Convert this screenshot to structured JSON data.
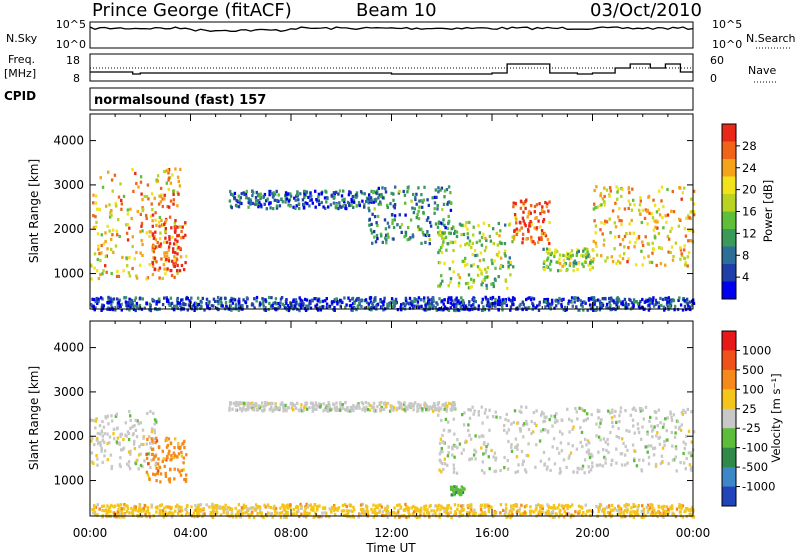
{
  "header": {
    "station": "Prince George (fitACF)",
    "beam": "Beam 10",
    "date": "03/Oct/2010"
  },
  "status_panels": {
    "nsky_label": "N.Sky",
    "nsky_ticks": [
      "10^5",
      "10^0"
    ],
    "nsearch_label": "N.Search",
    "freq_label": "Freq.",
    "freq_unit": "[MHz]",
    "freq_ticks": [
      "18",
      "8"
    ],
    "nave_label": "Nave",
    "nave_ticks": [
      "60",
      "0"
    ],
    "cpid_label": "CPID",
    "cpid_text": "normalsound (fast) 157"
  },
  "chart_data": [
    {
      "type": "heatmap",
      "name": "power",
      "ylabel": "Slant Range [km]",
      "yticks": [
        1000,
        2000,
        3000,
        4000
      ],
      "ylim": [
        200,
        4600
      ],
      "xlim_hours": [
        0,
        24
      ],
      "xtick_labels": [
        "00:00",
        "04:00",
        "08:00",
        "12:00",
        "16:00",
        "20:00",
        "00:00"
      ],
      "colorbar": {
        "label": "Power [dB]",
        "ticks": [
          "4",
          "8",
          "12",
          "16",
          "20",
          "24",
          "28"
        ],
        "colors": [
          "#0000ee",
          "#1f3fa8",
          "#2e6f9a",
          "#3a9a5a",
          "#5fbf3a",
          "#b8d420",
          "#f2e21a",
          "#f5a31a",
          "#f0641a",
          "#e82818"
        ]
      },
      "echo_regions": [
        {
          "t0": 0.0,
          "t1": 3.6,
          "r0": 900,
          "r1": 3400,
          "level": 0.7
        },
        {
          "t0": 2.4,
          "t1": 3.8,
          "r0": 1100,
          "r1": 2300,
          "level": 0.9
        },
        {
          "t0": 5.5,
          "t1": 11.5,
          "r0": 2500,
          "r1": 2900,
          "level": 0.2
        },
        {
          "t0": 11.0,
          "t1": 14.5,
          "r0": 1700,
          "r1": 3000,
          "level": 0.3
        },
        {
          "t0": 13.8,
          "t1": 16.8,
          "r0": 700,
          "r1": 2200,
          "level": 0.5
        },
        {
          "t0": 16.8,
          "t1": 18.3,
          "r0": 1700,
          "r1": 2700,
          "level": 0.9
        },
        {
          "t0": 18.0,
          "t1": 20.0,
          "r0": 1100,
          "r1": 1600,
          "level": 0.5
        },
        {
          "t0": 20.0,
          "t1": 24.0,
          "r0": 1200,
          "r1": 3000,
          "level": 0.7
        },
        {
          "t0": 0.0,
          "t1": 24.0,
          "r0": 200,
          "r1": 500,
          "level": 0.15
        }
      ]
    },
    {
      "type": "heatmap",
      "name": "velocity",
      "ylabel": "Slant Range [km]",
      "yticks": [
        1000,
        2000,
        3000,
        4000
      ],
      "ylim": [
        200,
        4600
      ],
      "xlim_hours": [
        0,
        24
      ],
      "xtick_labels": [
        "00:00",
        "04:00",
        "08:00",
        "12:00",
        "16:00",
        "20:00",
        "00:00"
      ],
      "xlabel": "Time UT",
      "colorbar": {
        "label": "Velocity [m s⁻¹]",
        "ticks": [
          "1000",
          "500",
          "100",
          "25",
          "-25",
          "-100",
          "-500",
          "-1000"
        ],
        "colors": [
          "#2244bb",
          "#3d86c8",
          "#2f8a4a",
          "#5cbd3a",
          "#c8c8c8",
          "#f5c51a",
          "#f5891a",
          "#f0501a",
          "#e81818"
        ]
      },
      "echo_regions": [
        {
          "t0": 0.0,
          "t1": 2.6,
          "r0": 1300,
          "r1": 2600,
          "level": "ground"
        },
        {
          "t0": 2.2,
          "t1": 3.8,
          "r0": 1000,
          "r1": 2000,
          "level": "orange"
        },
        {
          "t0": 5.5,
          "t1": 14.5,
          "r0": 2600,
          "r1": 2800,
          "level": "ground"
        },
        {
          "t0": 13.8,
          "t1": 24.0,
          "r0": 1200,
          "r1": 2700,
          "level": "ground"
        },
        {
          "t0": 14.3,
          "t1": 14.9,
          "r0": 700,
          "r1": 900,
          "level": "green"
        },
        {
          "t0": 0.0,
          "t1": 24.0,
          "r0": 200,
          "r1": 500,
          "level": "yellow"
        }
      ]
    }
  ]
}
